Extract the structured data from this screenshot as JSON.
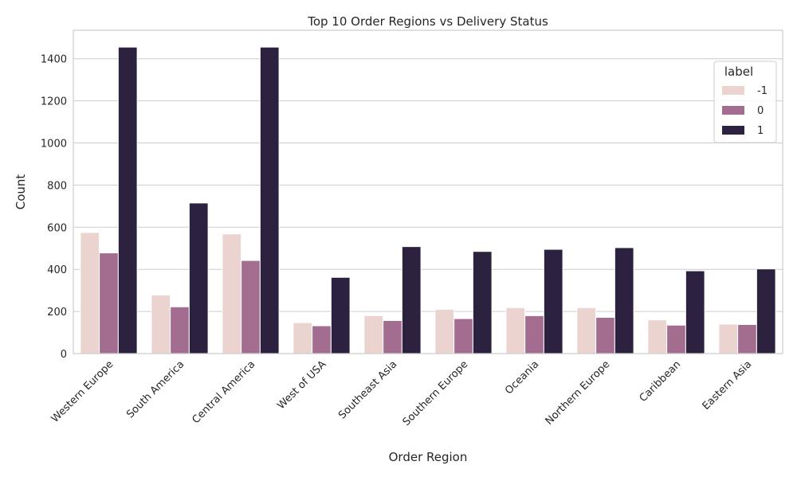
{
  "chart_data": {
    "type": "bar",
    "title": "Top 10 Order Regions vs Delivery Status",
    "xlabel": "Order Region",
    "ylabel": "Count",
    "ylim": [
      0,
      1535
    ],
    "yticks": [
      0,
      200,
      400,
      600,
      800,
      1000,
      1200,
      1400
    ],
    "grid": true,
    "legend": {
      "title": "label",
      "position": "top-right"
    },
    "categories": [
      "Western Europe",
      "South America",
      "Central America",
      "West of USA",
      "Southeast Asia",
      "Southern Europe",
      "Oceania",
      "Northern Europe",
      "Caribbean",
      "Eastern Asia"
    ],
    "series": [
      {
        "name": "-1",
        "color": "#ebd3d0",
        "values": [
          575,
          278,
          568,
          147,
          180,
          210,
          218,
          218,
          160,
          140
        ]
      },
      {
        "name": "0",
        "color": "#a36d8f",
        "values": [
          478,
          222,
          442,
          132,
          157,
          166,
          180,
          172,
          135,
          138
        ]
      },
      {
        "name": "1",
        "color": "#2d2140",
        "values": [
          1455,
          715,
          1455,
          362,
          508,
          485,
          495,
          503,
          393,
          402
        ]
      }
    ]
  }
}
